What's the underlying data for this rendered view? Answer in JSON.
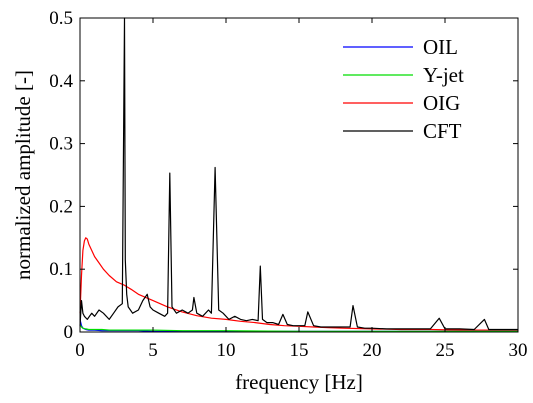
{
  "chart_data": {
    "type": "line",
    "title": "",
    "xlabel": "frequency [Hz]",
    "ylabel": "normalized amplitude [-]",
    "xlim": [
      0,
      30
    ],
    "ylim": [
      0,
      0.5
    ],
    "xticks": [
      "0",
      "5",
      "10",
      "15",
      "20",
      "25",
      "30"
    ],
    "yticks": [
      "0",
      "0.1",
      "0.2",
      "0.3",
      "0.4",
      "0.5"
    ],
    "grid": false,
    "legend_position": "top-right",
    "series": [
      {
        "name": "OIL",
        "color": "#0000ff",
        "x": [
          0,
          0.1,
          0.2,
          0.4,
          0.6,
          1,
          1.5,
          2,
          3,
          4,
          5,
          7,
          10,
          15,
          20,
          25,
          30
        ],
        "y": [
          0.02,
          0.01,
          0.006,
          0.004,
          0.003,
          0.003,
          0.002,
          0.002,
          0.002,
          0.002,
          0.001,
          0.001,
          0.001,
          0.001,
          0.001,
          0.001,
          0.001
        ]
      },
      {
        "name": "Y-jet",
        "color": "#00dd00",
        "x": [
          0,
          0.1,
          0.2,
          0.4,
          0.6,
          1,
          1.5,
          2,
          3,
          4,
          5,
          7,
          10,
          15,
          20,
          25,
          30
        ],
        "y": [
          0.012,
          0.008,
          0.006,
          0.005,
          0.004,
          0.004,
          0.004,
          0.003,
          0.003,
          0.003,
          0.003,
          0.002,
          0.002,
          0.001,
          0.001,
          0.001,
          0.001
        ]
      },
      {
        "name": "OIG",
        "color": "#ff0000",
        "x": [
          0,
          0.1,
          0.2,
          0.3,
          0.4,
          0.5,
          0.6,
          0.8,
          1.0,
          1.3,
          1.6,
          2.0,
          2.5,
          3.0,
          3.5,
          4.0,
          5.0,
          6.0,
          7.0,
          8.0,
          9.0,
          10.0,
          11.0,
          12.0,
          13.0,
          14.0,
          15.0,
          16.0,
          17.0,
          18.0,
          20.0,
          22.0,
          24.0,
          26.0,
          28.0,
          30.0
        ],
        "y": [
          0.03,
          0.09,
          0.13,
          0.145,
          0.15,
          0.148,
          0.14,
          0.13,
          0.12,
          0.11,
          0.1,
          0.09,
          0.08,
          0.075,
          0.068,
          0.06,
          0.05,
          0.04,
          0.032,
          0.026,
          0.022,
          0.02,
          0.017,
          0.015,
          0.012,
          0.01,
          0.009,
          0.008,
          0.007,
          0.006,
          0.005,
          0.004,
          0.004,
          0.003,
          0.003,
          0.003
        ]
      },
      {
        "name": "CFT",
        "color": "#000000",
        "x": [
          0,
          0.1,
          0.2,
          0.3,
          0.5,
          0.8,
          1.0,
          1.3,
          1.6,
          2.0,
          2.3,
          2.6,
          2.9,
          3.05,
          3.1,
          3.2,
          3.3,
          3.6,
          4.0,
          4.3,
          4.6,
          4.8,
          5.0,
          5.4,
          5.8,
          6.0,
          6.15,
          6.3,
          6.6,
          7.0,
          7.4,
          7.7,
          7.8,
          8.0,
          8.4,
          8.8,
          9.0,
          9.25,
          9.5,
          9.8,
          10.2,
          10.6,
          11.0,
          11.4,
          11.8,
          12.2,
          12.35,
          12.5,
          12.8,
          13.2,
          13.6,
          13.9,
          14.2,
          14.6,
          15.0,
          15.4,
          15.6,
          16.0,
          16.5,
          17.0,
          17.5,
          18.0,
          18.5,
          18.7,
          19.0,
          19.5,
          20.0,
          21.0,
          22.0,
          23.0,
          24.0,
          24.6,
          25.0,
          26.0,
          27.0,
          27.7,
          28.0,
          29.0,
          30.0
        ],
        "y": [
          0.01,
          0.05,
          0.03,
          0.025,
          0.02,
          0.03,
          0.025,
          0.035,
          0.03,
          0.02,
          0.03,
          0.04,
          0.045,
          0.5,
          0.115,
          0.06,
          0.04,
          0.03,
          0.035,
          0.05,
          0.06,
          0.04,
          0.035,
          0.03,
          0.025,
          0.03,
          0.253,
          0.04,
          0.03,
          0.035,
          0.03,
          0.035,
          0.055,
          0.03,
          0.025,
          0.035,
          0.03,
          0.262,
          0.035,
          0.03,
          0.02,
          0.025,
          0.02,
          0.018,
          0.02,
          0.018,
          0.105,
          0.02,
          0.015,
          0.015,
          0.012,
          0.028,
          0.012,
          0.01,
          0.01,
          0.01,
          0.032,
          0.01,
          0.008,
          0.008,
          0.008,
          0.008,
          0.008,
          0.042,
          0.008,
          0.006,
          0.006,
          0.005,
          0.005,
          0.005,
          0.005,
          0.022,
          0.005,
          0.005,
          0.004,
          0.02,
          0.004,
          0.004,
          0.004
        ]
      }
    ]
  }
}
